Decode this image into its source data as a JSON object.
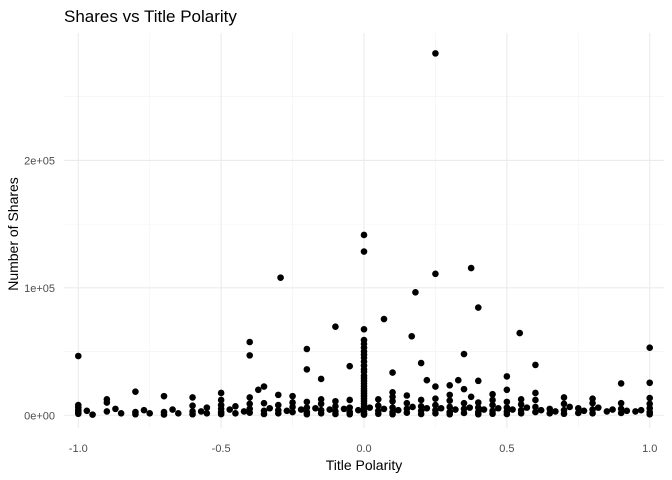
{
  "chart_data": {
    "type": "scatter",
    "title": "Shares vs Title Polarity",
    "xlabel": "Title Polarity",
    "ylabel": "Number of Shares",
    "xlim": [
      -1.05,
      1.05
    ],
    "ylim": [
      -10000,
      300000
    ],
    "x_ticks": [
      -1.0,
      -0.5,
      0.0,
      0.5,
      1.0
    ],
    "x_tick_labels": [
      "-1.0",
      "-0.5",
      "0.0",
      "0.5",
      "1.0"
    ],
    "x_minor_ticks": [
      -0.75,
      -0.25,
      0.25,
      0.75
    ],
    "y_ticks": [
      0,
      100000,
      200000
    ],
    "y_tick_labels": [
      "0e+00",
      "1e+05",
      "2e+05"
    ],
    "y_minor_ticks": [
      50000,
      150000,
      250000
    ],
    "grid": true,
    "point_color": "#000000",
    "points": [
      [
        0.25,
        284000
      ],
      [
        0.0,
        141500
      ],
      [
        0.0,
        128500
      ],
      [
        0.25,
        111000
      ],
      [
        0.375,
        115500
      ],
      [
        -0.292,
        108000
      ],
      [
        0.18,
        96500
      ],
      [
        0.4,
        84500
      ],
      [
        0.07,
        75500
      ],
      [
        -0.1,
        69500
      ],
      [
        0.0,
        67500
      ],
      [
        0.545,
        64500
      ],
      [
        0.167,
        62000
      ],
      [
        -0.4,
        57500
      ],
      [
        0.0,
        59000
      ],
      [
        0.0,
        56000
      ],
      [
        0.0,
        53000
      ],
      [
        1.0,
        53000
      ],
      [
        -0.2,
        52000
      ],
      [
        0.0,
        50000
      ],
      [
        -0.4,
        47000
      ],
      [
        -1.0,
        46500
      ],
      [
        0.35,
        48000
      ],
      [
        0.0,
        47500
      ],
      [
        0.0,
        45000
      ],
      [
        0.0,
        42000
      ],
      [
        0.6,
        39500
      ],
      [
        0.2,
        41000
      ],
      [
        -0.05,
        38500
      ],
      [
        0.1,
        33500
      ],
      [
        0.0,
        39000
      ],
      [
        0.0,
        36000
      ],
      [
        0.0,
        34000
      ],
      [
        0.0,
        31000
      ],
      [
        0.5,
        30500
      ],
      [
        -0.2,
        36000
      ],
      [
        -0.15,
        28500
      ],
      [
        0.22,
        27500
      ],
      [
        0.33,
        27500
      ],
      [
        0.4,
        27000
      ],
      [
        0.0,
        29000
      ],
      [
        0.0,
        27000
      ],
      [
        0.0,
        25000
      ],
      [
        0.9,
        25000
      ],
      [
        1.0,
        25500
      ],
      [
        -0.35,
        22500
      ],
      [
        -0.37,
        20000
      ],
      [
        0.25,
        22500
      ],
      [
        0.3,
        23500
      ],
      [
        0.35,
        20500
      ],
      [
        0.0,
        23000
      ],
      [
        0.0,
        21000
      ],
      [
        0.5,
        20000
      ],
      [
        -0.8,
        18500
      ],
      [
        -0.5,
        17500
      ],
      [
        0.6,
        17500
      ],
      [
        0.45,
        16500
      ],
      [
        0.0,
        19000
      ],
      [
        0.0,
        17000
      ],
      [
        0.1,
        18000
      ],
      [
        -0.7,
        15000
      ],
      [
        -0.6,
        14000
      ],
      [
        -0.4,
        14000
      ],
      [
        -0.3,
        16000
      ],
      [
        -0.25,
        15000
      ],
      [
        0.375,
        14500
      ],
      [
        0.7,
        14000
      ],
      [
        0.8,
        13000
      ],
      [
        0.15,
        15500
      ],
      [
        1.0,
        13500
      ],
      [
        -0.9,
        12500
      ],
      [
        -0.9,
        10000
      ],
      [
        -1.0,
        8000
      ],
      [
        -1.0,
        6000
      ],
      [
        -1.0,
        4000
      ],
      [
        -1.0,
        2500
      ],
      [
        -1.0,
        1200
      ],
      [
        -0.95,
        500
      ],
      [
        -0.9,
        3000
      ],
      [
        -0.85,
        1500
      ],
      [
        -0.8,
        2500
      ],
      [
        -0.8,
        800
      ],
      [
        -0.75,
        1500
      ],
      [
        -0.7,
        2500
      ],
      [
        -0.7,
        600
      ],
      [
        -0.65,
        1500
      ],
      [
        -0.6,
        3000
      ],
      [
        -0.6,
        800
      ],
      [
        -0.55,
        1500
      ],
      [
        -0.5,
        12000
      ],
      [
        -0.5,
        8000
      ],
      [
        -0.5,
        5000
      ],
      [
        -0.5,
        2500
      ],
      [
        -0.5,
        900
      ],
      [
        -0.45,
        1500
      ],
      [
        -0.4,
        9000
      ],
      [
        -0.4,
        5000
      ],
      [
        -0.4,
        2000
      ],
      [
        -0.35,
        3500
      ],
      [
        -0.35,
        1000
      ],
      [
        -0.3,
        8000
      ],
      [
        -0.3,
        4000
      ],
      [
        -0.3,
        1500
      ],
      [
        -0.25,
        6500
      ],
      [
        -0.25,
        2500
      ],
      [
        -0.2,
        10500
      ],
      [
        -0.2,
        6000
      ],
      [
        -0.2,
        2500
      ],
      [
        -0.2,
        800
      ],
      [
        -0.15,
        9000
      ],
      [
        -0.15,
        4000
      ],
      [
        -0.15,
        1500
      ],
      [
        -0.1,
        11000
      ],
      [
        -0.1,
        7000
      ],
      [
        -0.1,
        3000
      ],
      [
        -0.1,
        1000
      ],
      [
        -0.05,
        12000
      ],
      [
        -0.05,
        6000
      ],
      [
        -0.05,
        2500
      ],
      [
        -0.05,
        800
      ],
      [
        0.0,
        15000
      ],
      [
        0.0,
        13000
      ],
      [
        0.0,
        11000
      ],
      [
        0.0,
        9000
      ],
      [
        0.0,
        7000
      ],
      [
        0.0,
        5000
      ],
      [
        0.0,
        3000
      ],
      [
        0.0,
        1500
      ],
      [
        0.0,
        500
      ],
      [
        0.05,
        12500
      ],
      [
        0.05,
        7500
      ],
      [
        0.05,
        3500
      ],
      [
        0.05,
        1200
      ],
      [
        0.1,
        11000
      ],
      [
        0.1,
        6000
      ],
      [
        0.1,
        2500
      ],
      [
        0.1,
        800
      ],
      [
        0.15,
        9500
      ],
      [
        0.15,
        5000
      ],
      [
        0.15,
        2000
      ],
      [
        0.2,
        12000
      ],
      [
        0.2,
        7000
      ],
      [
        0.2,
        3500
      ],
      [
        0.2,
        1000
      ],
      [
        0.25,
        13000
      ],
      [
        0.25,
        8000
      ],
      [
        0.25,
        4000
      ],
      [
        0.25,
        1500
      ],
      [
        0.3,
        11500
      ],
      [
        0.3,
        6500
      ],
      [
        0.3,
        2500
      ],
      [
        0.3,
        800
      ],
      [
        0.35,
        9500
      ],
      [
        0.35,
        5000
      ],
      [
        0.35,
        1800
      ],
      [
        0.4,
        10000
      ],
      [
        0.4,
        6000
      ],
      [
        0.4,
        2500
      ],
      [
        0.4,
        800
      ],
      [
        0.45,
        8000
      ],
      [
        0.45,
        3500
      ],
      [
        0.45,
        1200
      ],
      [
        0.5,
        10500
      ],
      [
        0.5,
        6000
      ],
      [
        0.5,
        3000
      ],
      [
        0.5,
        1000
      ],
      [
        0.55,
        8500
      ],
      [
        0.55,
        4000
      ],
      [
        0.55,
        1500
      ],
      [
        0.6,
        12000
      ],
      [
        0.6,
        6500
      ],
      [
        0.6,
        2500
      ],
      [
        0.65,
        5000
      ],
      [
        0.65,
        1500
      ],
      [
        0.7,
        9000
      ],
      [
        0.7,
        4000
      ],
      [
        0.7,
        1200
      ],
      [
        0.75,
        5500
      ],
      [
        0.75,
        1800
      ],
      [
        0.8,
        9500
      ],
      [
        0.8,
        4500
      ],
      [
        0.8,
        1500
      ],
      [
        0.85,
        3000
      ],
      [
        0.9,
        9500
      ],
      [
        0.9,
        5000
      ],
      [
        0.9,
        1800
      ],
      [
        0.95,
        3000
      ],
      [
        1.0,
        9000
      ],
      [
        1.0,
        5500
      ],
      [
        1.0,
        2500
      ],
      [
        1.0,
        800
      ],
      [
        -0.97,
        3500
      ],
      [
        -0.87,
        5000
      ],
      [
        -0.77,
        4000
      ],
      [
        -0.67,
        4500
      ],
      [
        -0.57,
        3000
      ],
      [
        -0.47,
        4500
      ],
      [
        -0.42,
        3000
      ],
      [
        -0.33,
        5500
      ],
      [
        -0.27,
        3500
      ],
      [
        -0.22,
        4500
      ],
      [
        -0.17,
        5500
      ],
      [
        -0.12,
        4500
      ],
      [
        -0.07,
        5000
      ],
      [
        -0.02,
        4000
      ],
      [
        0.02,
        6000
      ],
      [
        0.07,
        5000
      ],
      [
        0.12,
        4000
      ],
      [
        0.17,
        6500
      ],
      [
        0.22,
        5500
      ],
      [
        0.27,
        5500
      ],
      [
        0.32,
        4500
      ],
      [
        0.37,
        6000
      ],
      [
        0.42,
        4500
      ],
      [
        0.47,
        5500
      ],
      [
        0.52,
        4500
      ],
      [
        0.57,
        6000
      ],
      [
        0.62,
        4000
      ],
      [
        0.67,
        3000
      ],
      [
        0.72,
        6500
      ],
      [
        0.77,
        3500
      ],
      [
        0.82,
        6000
      ],
      [
        0.87,
        4500
      ],
      [
        0.92,
        3500
      ],
      [
        0.97,
        4000
      ],
      [
        -0.6,
        7500
      ],
      [
        -0.55,
        6000
      ],
      [
        -0.45,
        7000
      ],
      [
        -0.35,
        9500
      ],
      [
        -0.25,
        10000
      ],
      [
        -0.15,
        12500
      ],
      [
        0.1,
        14500
      ],
      [
        0.3,
        16000
      ],
      [
        0.45,
        12000
      ],
      [
        0.55,
        12500
      ]
    ]
  }
}
